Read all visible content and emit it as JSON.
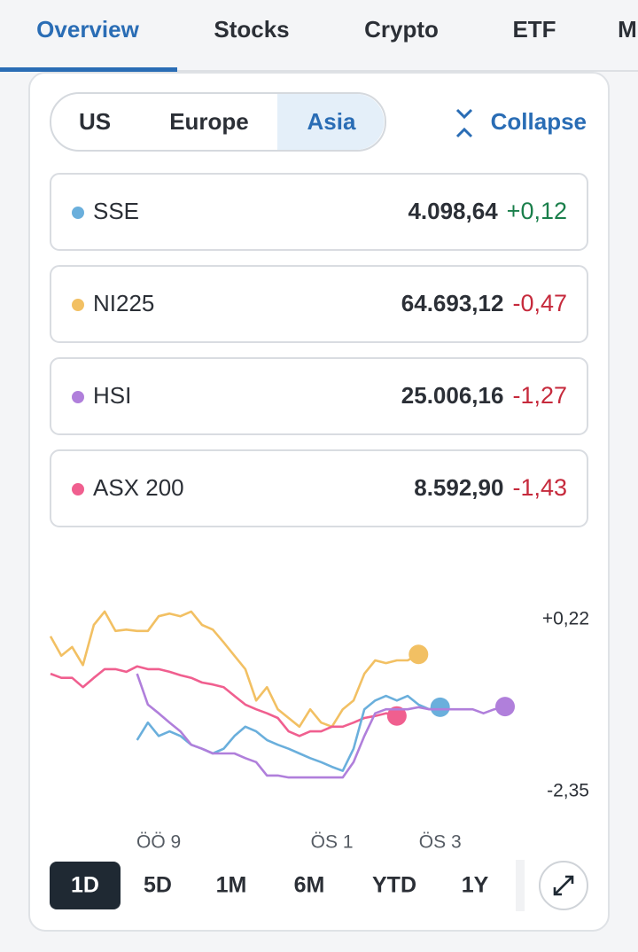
{
  "tabs": [
    "Overview",
    "Stocks",
    "Crypto",
    "ETF",
    "M"
  ],
  "regions": [
    "US",
    "Europe",
    "Asia"
  ],
  "collapse": "Collapse",
  "indices": [
    {
      "name": "SSE",
      "value": "4.098,64",
      "change": "+0,12"
    },
    {
      "name": "NI225",
      "value": "64.693,12",
      "change": "-0,47"
    },
    {
      "name": "HSI",
      "value": "25.006,16",
      "change": "-1,27"
    },
    {
      "name": "ASX 200",
      "value": "8.592,90",
      "change": "-1,43"
    }
  ],
  "ranges": [
    "1D",
    "5D",
    "1M",
    "6M",
    "YTD",
    "1Y"
  ],
  "chart_data": {
    "type": "line",
    "categories": [
      null,
      null,
      null,
      null,
      null,
      null,
      null,
      null,
      null,
      null,
      "ÖÖ 9",
      null,
      null,
      null,
      null,
      null,
      null,
      null,
      null,
      null,
      null,
      null,
      null,
      null,
      null,
      null,
      "ÖS 1",
      null,
      null,
      null,
      null,
      null,
      null,
      null,
      null,
      null,
      "ÖS 3",
      null,
      null,
      null,
      null,
      null,
      null
    ],
    "ylim": [
      -2.35,
      0.22
    ],
    "yticks": [
      {
        "value": 0.22,
        "label": "+0,22"
      },
      {
        "value": -2.35,
        "label": "-2,35"
      }
    ],
    "series": [
      {
        "name": "NI225",
        "color": "#f2c063",
        "values": [
          -0.03,
          -0.32,
          -0.19,
          -0.46,
          0.14,
          0.34,
          0.05,
          0.07,
          0.05,
          0.05,
          0.27,
          0.31,
          0.27,
          0.34,
          0.14,
          0.07,
          -0.12,
          -0.32,
          -0.52,
          -0.99,
          -0.79,
          -1.12,
          -1.25,
          -1.38,
          -1.12,
          -1.32,
          -1.38,
          -1.12,
          -0.99,
          -0.59,
          -0.39,
          -0.43,
          -0.39,
          -0.39,
          -0.3,
          null,
          null,
          null,
          null,
          null,
          null,
          null,
          null
        ]
      },
      {
        "name": "ASX 200",
        "color": "#f05f8f",
        "values": [
          -0.59,
          -0.65,
          -0.65,
          -0.79,
          -0.65,
          -0.52,
          -0.52,
          -0.56,
          -0.48,
          -0.52,
          -0.52,
          -0.56,
          -0.61,
          -0.65,
          -0.72,
          -0.75,
          -0.79,
          -0.92,
          -1.05,
          -1.12,
          -1.18,
          -1.25,
          -1.45,
          -1.52,
          -1.45,
          -1.45,
          -1.38,
          -1.38,
          -1.32,
          -1.25,
          -1.22,
          -1.18,
          -1.22,
          null,
          null,
          null,
          null,
          null,
          null,
          null,
          null,
          null,
          null
        ]
      },
      {
        "name": "SSE",
        "color": "#6aafdc",
        "values": [
          null,
          null,
          null,
          null,
          null,
          null,
          null,
          null,
          -1.58,
          -1.32,
          -1.52,
          -1.45,
          -1.52,
          -1.65,
          -1.71,
          -1.78,
          -1.71,
          -1.52,
          -1.38,
          -1.45,
          -1.58,
          -1.65,
          -1.71,
          -1.78,
          -1.85,
          -1.91,
          -1.98,
          -2.04,
          -1.71,
          -1.12,
          -0.99,
          -0.92,
          -0.99,
          -0.92,
          -1.05,
          -1.12,
          -1.09,
          null,
          null,
          null,
          null,
          null,
          null
        ]
      },
      {
        "name": "HSI",
        "color": "#b07fdb",
        "values": [
          null,
          null,
          null,
          null,
          null,
          null,
          null,
          null,
          -0.59,
          -1.05,
          -1.18,
          -1.32,
          -1.45,
          -1.65,
          -1.71,
          -1.78,
          -1.78,
          -1.78,
          -1.85,
          -1.91,
          -2.11,
          -2.11,
          -2.14,
          -2.14,
          -2.14,
          -2.14,
          -2.14,
          -2.14,
          -1.91,
          -1.52,
          -1.18,
          -1.12,
          -1.12,
          -1.12,
          -1.09,
          -1.12,
          -1.12,
          -1.12,
          -1.12,
          -1.12,
          -1.18,
          -1.12,
          -1.08
        ]
      }
    ]
  }
}
